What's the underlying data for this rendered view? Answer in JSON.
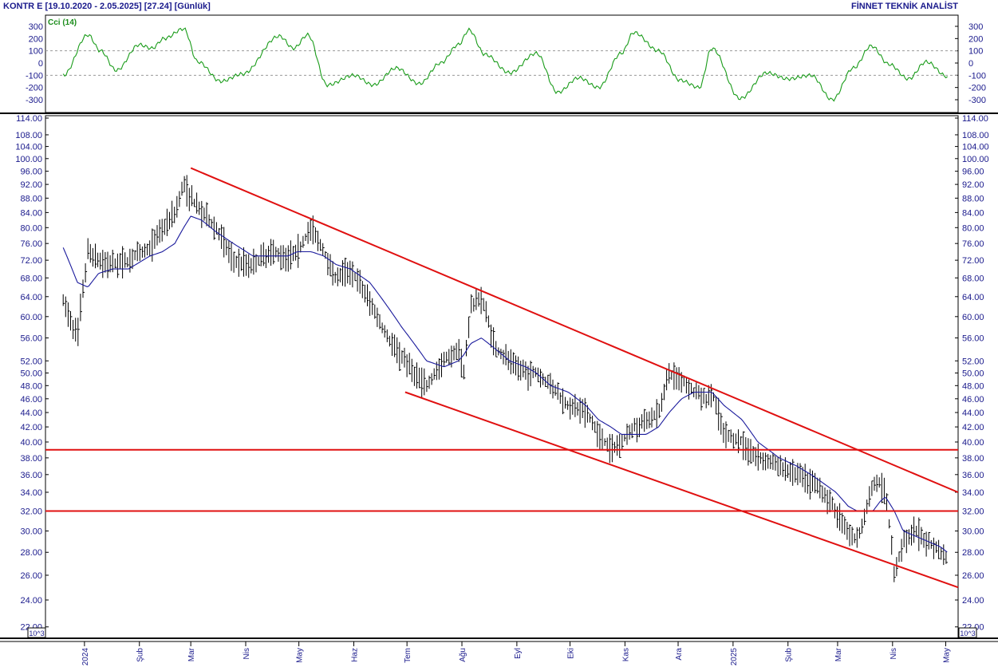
{
  "header": {
    "left": "KONTR E  [19.10.2020 - 2.05.2025]  [27.24]  [Günlük]",
    "right": "FİNNET TEKNİK ANALİST"
  },
  "cci_panel": {
    "label": "Cci (14)",
    "ticks": [
      "300",
      "200",
      "100",
      "0",
      "-100",
      "-200",
      "-300"
    ],
    "dashed_levels": [
      100,
      -100
    ]
  },
  "price_panel": {
    "ticks": [
      "114.00",
      "108.00",
      "104.00",
      "100.00",
      "96.00",
      "92.00",
      "88.00",
      "84.00",
      "80.00",
      "76.00",
      "72.00",
      "68.00",
      "64.00",
      "60.00",
      "56.00",
      "52.00",
      "50.00",
      "48.00",
      "46.00",
      "44.00",
      "42.00",
      "40.00",
      "38.00",
      "36.00",
      "34.00",
      "32.00",
      "30.00",
      "28.00",
      "26.00",
      "24.00",
      "22.00"
    ],
    "scale_badge": "10^3"
  },
  "x_axis": {
    "months": [
      "2024",
      "Şub",
      "Mar",
      "Nis",
      "May",
      "Haz",
      "Tem",
      "Ağu",
      "Eyl",
      "Eki",
      "Kas",
      "Ara",
      "2025",
      "Şub",
      "Mar",
      "Nis",
      "May"
    ]
  },
  "colors": {
    "price_bars": "#000000",
    "moving_average": "#1a1a9c",
    "trend_lines": "#e01010",
    "cci_line": "#1a9c1a",
    "axis_text": "#1a1a8c"
  },
  "chart_data": [
    {
      "type": "line",
      "name": "CCI oscillator panel",
      "ylim": [
        -400,
        400
      ],
      "x": [
        "2023-12-20",
        "2024-01-03",
        "2024-01-10",
        "2024-01-19",
        "2024-02-01",
        "2024-02-08",
        "2024-02-15",
        "2024-02-26",
        "2024-03-05",
        "2024-03-18",
        "2024-03-30",
        "2024-04-20",
        "2024-04-28",
        "2024-05-06",
        "2024-05-17",
        "2024-06-01",
        "2024-06-12",
        "2024-06-25",
        "2024-07-08",
        "2024-07-20",
        "2024-07-30",
        "2024-08-05",
        "2024-08-14",
        "2024-08-28",
        "2024-09-12",
        "2024-09-24",
        "2024-10-06",
        "2024-10-17",
        "2024-10-30",
        "2024-11-06",
        "2024-11-20",
        "2024-12-02",
        "2024-12-13",
        "2024-12-20",
        "2025-01-05",
        "2025-01-20",
        "2025-02-01",
        "2025-02-14",
        "2025-02-26",
        "2025-03-10",
        "2025-03-20",
        "2025-03-30",
        "2025-04-10",
        "2025-04-20",
        "2025-05-02"
      ],
      "values": [
        -100,
        230,
        100,
        -60,
        150,
        120,
        200,
        280,
        10,
        -150,
        -90,
        220,
        120,
        230,
        -180,
        -100,
        -180,
        -40,
        -170,
        0,
        150,
        270,
        70,
        -80,
        80,
        -240,
        -120,
        -200,
        80,
        250,
        100,
        -140,
        -200,
        120,
        -290,
        -80,
        -130,
        -100,
        -300,
        -40,
        140,
        -10,
        -130,
        10,
        -110
      ]
    },
    {
      "type": "line",
      "name": "price panel",
      "x": [
        "2023-12-20",
        "2023-12-28",
        "2024-01-03",
        "2024-01-09",
        "2024-01-17",
        "2024-01-26",
        "2024-02-07",
        "2024-02-14",
        "2024-02-21",
        "2024-02-26",
        "2024-03-01",
        "2024-03-07",
        "2024-03-15",
        "2024-03-25",
        "2024-04-05",
        "2024-04-15",
        "2024-04-25",
        "2024-04-30",
        "2024-05-08",
        "2024-05-15",
        "2024-05-22",
        "2024-05-30",
        "2024-06-10",
        "2024-06-20",
        "2024-06-28",
        "2024-07-05",
        "2024-07-12",
        "2024-07-22",
        "2024-07-30",
        "2024-08-02",
        "2024-08-06",
        "2024-08-12",
        "2024-08-20",
        "2024-08-28",
        "2024-09-06",
        "2024-09-12",
        "2024-09-20",
        "2024-09-30",
        "2024-10-10",
        "2024-10-17",
        "2024-10-24",
        "2024-10-30",
        "2024-11-06",
        "2024-11-13",
        "2024-11-20",
        "2024-11-26",
        "2024-12-03",
        "2024-12-10",
        "2024-12-17",
        "2024-12-20",
        "2024-12-27",
        "2025-01-06",
        "2025-01-15",
        "2025-01-27",
        "2025-02-06",
        "2025-02-14",
        "2025-02-21",
        "2025-02-28",
        "2025-03-07",
        "2025-03-12",
        "2025-03-17",
        "2025-03-21",
        "2025-03-25",
        "2025-03-28",
        "2025-04-02",
        "2025-04-07",
        "2025-04-14",
        "2025-04-21",
        "2025-04-28",
        "2025-05-02"
      ],
      "close": [
        63,
        56,
        74,
        72,
        71,
        72,
        75,
        80,
        84,
        92,
        88,
        84,
        80,
        72,
        71,
        74,
        73,
        74,
        80,
        74,
        68,
        70,
        63,
        56,
        53,
        50,
        48,
        52,
        54,
        50,
        62,
        64,
        54,
        52,
        50,
        50,
        48,
        45,
        44,
        41,
        39,
        40,
        42,
        43,
        44,
        50,
        49,
        47,
        46,
        47,
        41,
        40,
        38,
        37,
        36,
        35,
        34,
        32,
        30,
        29,
        32,
        35,
        35,
        34,
        26,
        29,
        30,
        29,
        28,
        27.24
      ],
      "moving_average": [
        75,
        67,
        66,
        69,
        70,
        70,
        73,
        74,
        76,
        80,
        83,
        82,
        79,
        76,
        73,
        73,
        73,
        74,
        74,
        73,
        71,
        70,
        67,
        62,
        58,
        55,
        52,
        51,
        52,
        53,
        55,
        56,
        54,
        52,
        51,
        50,
        48,
        47,
        45,
        43,
        42,
        41,
        41,
        41,
        42,
        44,
        46,
        47,
        47,
        47,
        45,
        43,
        40,
        38,
        37,
        36,
        35,
        34,
        32.5,
        32,
        32,
        32,
        33,
        33.5,
        32,
        30,
        29.5,
        29,
        28.5,
        28
      ],
      "ylim": [
        22,
        116
      ],
      "scale": "log",
      "grid": true
    },
    {
      "type": "line",
      "name": "trend lines",
      "series": [
        {
          "x": [
            "2024-03-01",
            "2025-05-08"
          ],
          "y": [
            97,
            34
          ]
        },
        {
          "x": [
            "2024-06-30",
            "2025-05-08"
          ],
          "y": [
            47,
            25
          ]
        },
        {
          "x": [
            "2023-12-10",
            "2025-05-08"
          ],
          "y": [
            39,
            39
          ]
        },
        {
          "x": [
            "2023-12-10",
            "2025-05-08"
          ],
          "y": [
            32,
            32
          ]
        }
      ]
    }
  ]
}
